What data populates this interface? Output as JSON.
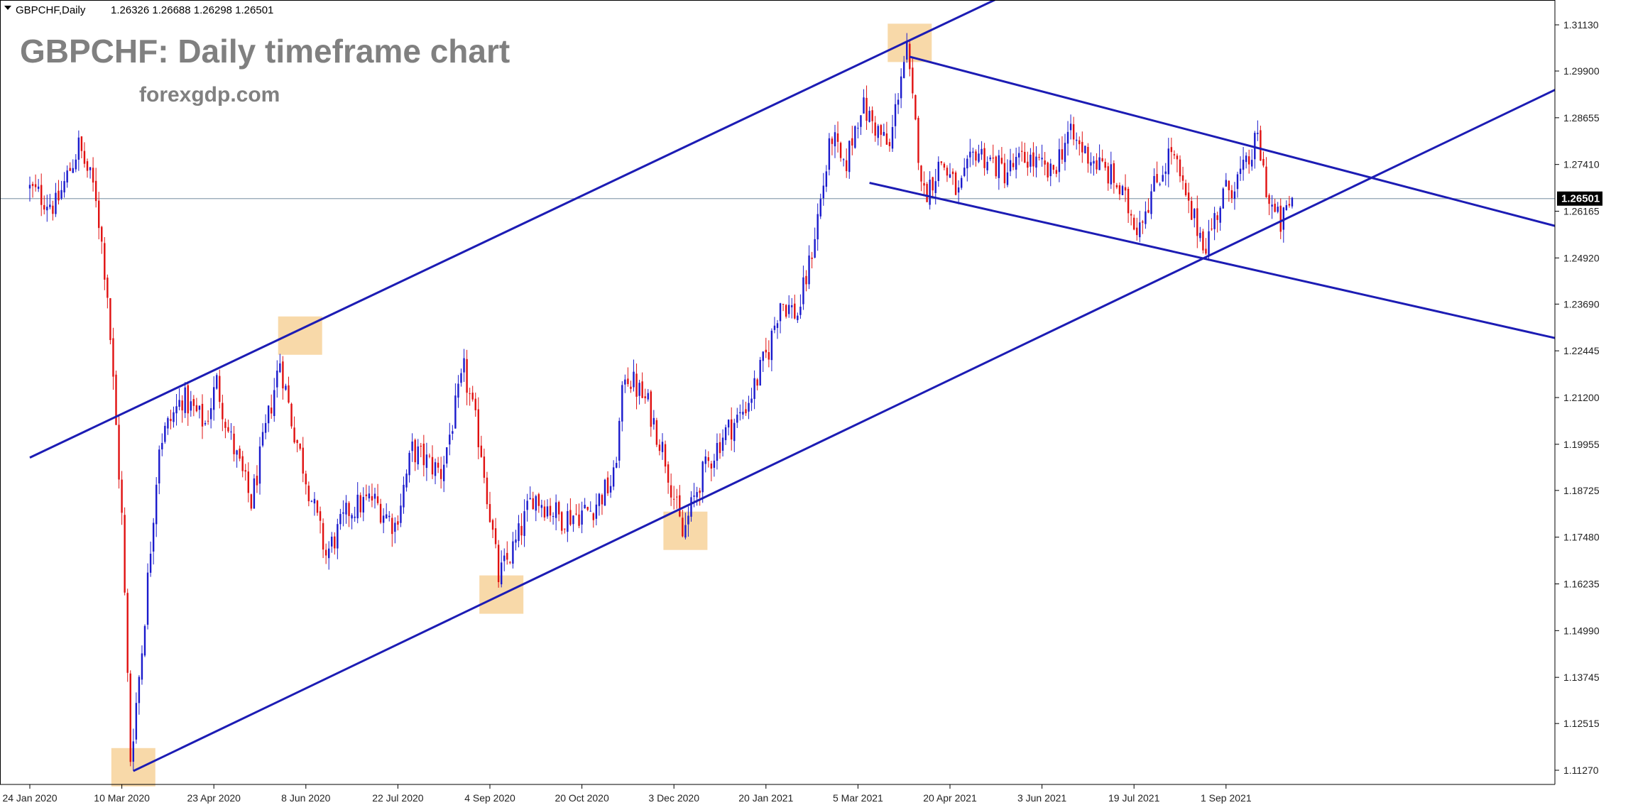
{
  "header": {
    "symbol_info": "GBPCHF,Daily",
    "ohlc": "1.26326 1.26688 1.26298 1.26501"
  },
  "watermark": {
    "title": "GBPCHF: Daily timeframe chart",
    "site": "forexgdp.com"
  },
  "colors": {
    "bull_candle": "#1a1acc",
    "bear_candle": "#e01010",
    "trendline": "#1c1cb4",
    "highlight_box": "#f7d29a",
    "price_line": "#8fa3b3",
    "axis_text": "#222222",
    "watermark_text": "#808080",
    "price_label_bg": "#000000"
  },
  "chart_data": {
    "type": "candlestick",
    "symbol": "GBPCHF",
    "timeframe": "Daily",
    "current_price": "1.26501",
    "ylim": [
      1.1065,
      1.3185
    ],
    "y_ticks": [
      "1.31130",
      "1.29900",
      "1.28655",
      "1.27410",
      "1.26165",
      "1.24920",
      "1.23690",
      "1.22445",
      "1.21200",
      "1.19955",
      "1.18725",
      "1.17480",
      "1.16235",
      "1.14990",
      "1.13745",
      "1.12515",
      "1.11270"
    ],
    "x_ticks": [
      "24 Jan 2020",
      "10 Mar 2020",
      "23 Apr 2020",
      "8 Jun 2020",
      "22 Jul 2020",
      "4 Sep 2020",
      "20 Oct 2020",
      "3 Dec 2020",
      "20 Jan 2021",
      "5 Mar 2021",
      "20 Apr 2021",
      "3 Jun 2021",
      "19 Jul 2021",
      "1 Sep 2021"
    ],
    "x_tick_bar_index": [
      0,
      32,
      64,
      96,
      128,
      160,
      192,
      224,
      256,
      288,
      320,
      352,
      384,
      416
    ],
    "total_bars": 440,
    "price_keyframes": [
      [
        0,
        1.268
      ],
      [
        10,
        1.263
      ],
      [
        18,
        1.279
      ],
      [
        24,
        1.266
      ],
      [
        28,
        1.24
      ],
      [
        33,
        1.18
      ],
      [
        36,
        1.116
      ],
      [
        40,
        1.145
      ],
      [
        46,
        1.2
      ],
      [
        54,
        1.212
      ],
      [
        62,
        1.205
      ],
      [
        66,
        1.216
      ],
      [
        70,
        1.203
      ],
      [
        78,
        1.184
      ],
      [
        88,
        1.222
      ],
      [
        92,
        1.206
      ],
      [
        98,
        1.188
      ],
      [
        104,
        1.17
      ],
      [
        112,
        1.182
      ],
      [
        120,
        1.185
      ],
      [
        128,
        1.178
      ],
      [
        134,
        1.198
      ],
      [
        144,
        1.192
      ],
      [
        152,
        1.219
      ],
      [
        158,
        1.198
      ],
      [
        164,
        1.164
      ],
      [
        170,
        1.173
      ],
      [
        176,
        1.186
      ],
      [
        186,
        1.18
      ],
      [
        196,
        1.182
      ],
      [
        204,
        1.19
      ],
      [
        208,
        1.219
      ],
      [
        216,
        1.21
      ],
      [
        222,
        1.196
      ],
      [
        228,
        1.175
      ],
      [
        234,
        1.19
      ],
      [
        242,
        1.202
      ],
      [
        248,
        1.207
      ],
      [
        252,
        1.213
      ],
      [
        258,
        1.225
      ],
      [
        262,
        1.238
      ],
      [
        268,
        1.234
      ],
      [
        272,
        1.247
      ],
      [
        280,
        1.282
      ],
      [
        284,
        1.272
      ],
      [
        290,
        1.29
      ],
      [
        296,
        1.283
      ],
      [
        300,
        1.278
      ],
      [
        304,
        1.299
      ],
      [
        306,
        1.304
      ],
      [
        308,
        1.29
      ],
      [
        312,
        1.266
      ],
      [
        318,
        1.275
      ],
      [
        324,
        1.266
      ],
      [
        330,
        1.278
      ],
      [
        340,
        1.272
      ],
      [
        348,
        1.276
      ],
      [
        356,
        1.271
      ],
      [
        362,
        1.282
      ],
      [
        370,
        1.276
      ],
      [
        378,
        1.27
      ],
      [
        386,
        1.258
      ],
      [
        392,
        1.268
      ],
      [
        398,
        1.278
      ],
      [
        404,
        1.262
      ],
      [
        410,
        1.253
      ],
      [
        416,
        1.266
      ],
      [
        424,
        1.273
      ],
      [
        428,
        1.281
      ],
      [
        432,
        1.264
      ],
      [
        436,
        1.258
      ],
      [
        440,
        1.265
      ]
    ],
    "trendlines": [
      {
        "name": "upper-channel",
        "p1": [
          0,
          1.196
        ],
        "p2": [
          344,
          1.321
        ]
      },
      {
        "name": "lower-channel",
        "p1": [
          36,
          1.1125
        ],
        "p2": [
          540,
          1.2975
        ]
      },
      {
        "name": "descending-top",
        "p1": [
          306,
          1.3028
        ],
        "p2": [
          544,
          1.255
        ]
      },
      {
        "name": "descending-bottom",
        "p1": [
          292,
          1.2692
        ],
        "p2": [
          544,
          1.2255
        ]
      }
    ],
    "highlight_zones": [
      {
        "center": [
          36,
          1.1135
        ]
      },
      {
        "center": [
          94,
          1.2285
        ]
      },
      {
        "center": [
          164,
          1.1595
        ]
      },
      {
        "center": [
          228,
          1.1765
        ]
      },
      {
        "center": [
          306,
          1.3065
        ]
      }
    ],
    "horizontal_line": 1.26501
  }
}
